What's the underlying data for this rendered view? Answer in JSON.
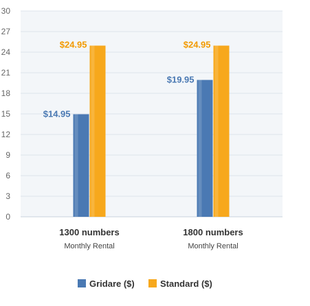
{
  "chart_data": {
    "type": "bar",
    "categories": [
      "1300 numbers",
      "1800 numbers"
    ],
    "category_sublabels": [
      "Monthly Rental",
      "Monthly Rental"
    ],
    "series": [
      {
        "name": "Gridare ($)",
        "values": [
          14.95,
          19.95
        ],
        "labels": [
          "$14.95",
          "$19.95"
        ],
        "color": "#4a79b3"
      },
      {
        "name": "Standard ($)",
        "values": [
          24.95,
          24.95
        ],
        "labels": [
          "$24.95",
          "$24.95"
        ],
        "color": "#f7a81c"
      }
    ],
    "yticks": [
      0,
      3,
      6,
      9,
      12,
      15,
      18,
      21,
      24,
      27,
      30
    ],
    "ylim": [
      0,
      30
    ],
    "grid": true,
    "legend_position": "bottom",
    "colors": {
      "plot_background": "#f3f6f9",
      "gridline": "#dde4ec",
      "gridare_label": "#4a79b3",
      "standard_label": "#f29a00"
    }
  }
}
